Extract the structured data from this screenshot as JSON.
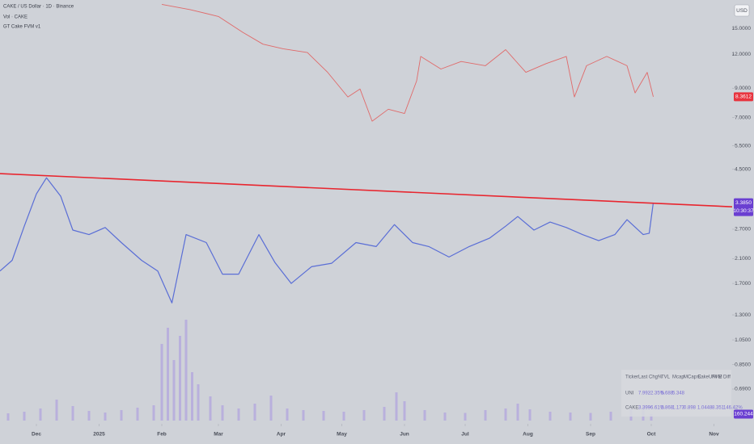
{
  "header": {
    "symbol": "CAKE / US Dollar · 1D · Binance",
    "volume": "Vol · CAKE",
    "indicator": "GT Cake FVM v1",
    "currency": "USD"
  },
  "chart_data": {
    "type": "line",
    "log_scale": true,
    "ylim": [
      0.513,
      19.1
    ],
    "yticks": [
      {
        "value": 15,
        "label": "15.0000"
      },
      {
        "value": 12,
        "label": "12.0000"
      },
      {
        "value": 9,
        "label": "9.0000"
      },
      {
        "value": 7,
        "label": "7.0000"
      },
      {
        "value": 5.5,
        "label": "5.5000"
      },
      {
        "value": 4.5,
        "label": "4.5000"
      },
      {
        "value": 2.7,
        "label": "2.7000"
      },
      {
        "value": 2.1,
        "label": "2.1000"
      },
      {
        "value": 1.7,
        "label": "1.7000"
      },
      {
        "value": 1.3,
        "label": "1.3000"
      },
      {
        "value": 1.05,
        "label": "1.0500"
      },
      {
        "value": 0.85,
        "label": "0.8500"
      },
      {
        "value": 0.69,
        "label": "0.6900"
      }
    ],
    "xlim": [
      0,
      362
    ],
    "xticks": [
      {
        "value": 18,
        "label": "Dec"
      },
      {
        "value": 49,
        "label": "2025"
      },
      {
        "value": 80,
        "label": "Feb"
      },
      {
        "value": 108,
        "label": "Mar"
      },
      {
        "value": 139,
        "label": "Apr"
      },
      {
        "value": 169,
        "label": "May"
      },
      {
        "value": 200,
        "label": "Jun"
      },
      {
        "value": 230,
        "label": "Jul"
      },
      {
        "value": 261,
        "label": "Aug"
      },
      {
        "value": 292,
        "label": "Sep"
      },
      {
        "value": 322,
        "label": "Oct"
      },
      {
        "value": 353,
        "label": "Nov"
      }
    ],
    "series": [
      {
        "name": "CAKE",
        "color": "#5a6ed6",
        "badge_color": "#6a3fd1",
        "last_label": "3.3850",
        "countdown": "10:30:37",
        "x": [
          0,
          6,
          12,
          18,
          23,
          30,
          36,
          44,
          52,
          60,
          70,
          78,
          85,
          92,
          102,
          110,
          118,
          128,
          136,
          144,
          154,
          164,
          176,
          186,
          195,
          204,
          212,
          222,
          232,
          242,
          250,
          256,
          264,
          272,
          280,
          288,
          296,
          304,
          310,
          318,
          321,
          323
        ],
        "values": [
          1.89,
          2.07,
          2.77,
          3.65,
          4.19,
          3.58,
          2.68,
          2.58,
          2.74,
          2.41,
          2.07,
          1.89,
          1.44,
          2.58,
          2.41,
          1.84,
          1.84,
          2.58,
          2.03,
          1.7,
          1.96,
          2.02,
          2.41,
          2.33,
          2.81,
          2.41,
          2.33,
          2.13,
          2.33,
          2.5,
          2.77,
          3.01,
          2.68,
          2.87,
          2.74,
          2.58,
          2.45,
          2.58,
          2.93,
          2.58,
          2.61,
          3.385
        ]
      },
      {
        "name": "UNI",
        "color": "#e06a6a",
        "badge_color": "#e8343f",
        "last_label": "8.3612",
        "x": [
          80,
          94,
          108,
          120,
          130,
          140,
          152,
          162,
          172,
          178,
          184,
          192,
          200,
          206,
          208,
          218,
          228,
          240,
          250,
          260,
          270,
          280,
          284,
          290,
          300,
          310,
          314,
          320,
          323
        ],
        "values": [
          18.4,
          17.6,
          16.6,
          14.5,
          13.1,
          12.6,
          12.2,
          10.3,
          8.35,
          8.94,
          6.79,
          7.52,
          7.25,
          9.58,
          11.8,
          10.6,
          11.3,
          10.9,
          12.5,
          10.3,
          11.1,
          11.8,
          8.35,
          10.9,
          11.8,
          10.9,
          8.64,
          10.3,
          8.3612
        ]
      }
    ],
    "trendline": {
      "color": "#e8262f",
      "x": [
        0,
        362
      ],
      "values": [
        4.34,
        3.27
      ]
    },
    "volume": {
      "color": "#b3a8de",
      "badge_color": "#6a3fd1",
      "last_label": "160.244",
      "vlim": [
        0,
        3000
      ],
      "x": [
        4,
        12,
        20,
        28,
        36,
        44,
        52,
        60,
        68,
        76,
        80,
        83,
        86,
        89,
        92,
        95,
        98,
        104,
        110,
        118,
        126,
        134,
        142,
        150,
        160,
        170,
        180,
        190,
        196,
        200,
        210,
        220,
        230,
        240,
        250,
        256,
        262,
        272,
        282,
        292,
        302,
        312,
        318,
        322
      ],
      "values": [
        180,
        220,
        300,
        520,
        360,
        240,
        200,
        260,
        320,
        380,
        1900,
        2300,
        1500,
        2100,
        2500,
        1200,
        900,
        600,
        380,
        300,
        420,
        620,
        300,
        260,
        240,
        220,
        260,
        340,
        700,
        480,
        260,
        200,
        190,
        260,
        300,
        420,
        280,
        220,
        200,
        190,
        220,
        300,
        360,
        160.244
      ]
    },
    "table": {
      "header": [
        "Ticker",
        "Last",
        "Chg%",
        "TVL",
        "Mcap",
        "MCap:E",
        "CakeUNI E",
        "FVM",
        "Diff"
      ],
      "rows": [
        [
          "UNI",
          "7.992",
          "-2.35%",
          "5.688",
          "5.348"
        ],
        [
          "CAKE",
          "3.399",
          "-6.61%",
          "2.868",
          "1.173",
          "0.898",
          "1.0448",
          "8.351",
          "146.42%"
        ]
      ]
    }
  }
}
